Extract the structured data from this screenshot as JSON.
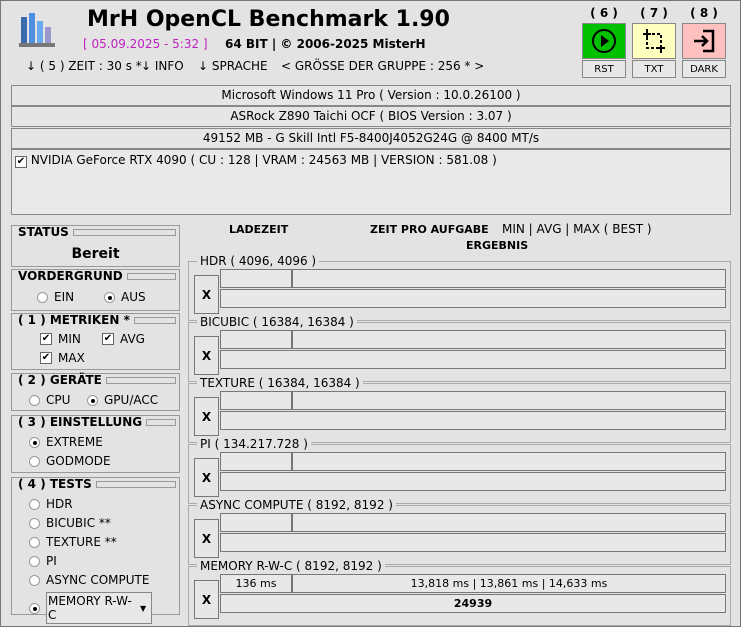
{
  "app": {
    "title": "MrH OpenCL Benchmark 1.90",
    "date": "[ 05.09.2025 - 5:32 ]",
    "bits": "64 BIT | ©  2006-2025 MisterH"
  },
  "menu": [
    {
      "label": "↓ ( 5 ) ZEIT : 30 s *"
    },
    {
      "label": "↓ INFO"
    },
    {
      "label": "↓ SPRACHE"
    },
    {
      "label": "< GRÖSSE DER GRUPPE : 256 * >"
    }
  ],
  "buttons": [
    {
      "num": "( 6 )",
      "label": "RST",
      "icon": "play-icon",
      "color": "#00c000"
    },
    {
      "num": "( 7 )",
      "label": "TXT",
      "icon": "crop-icon",
      "color": "#ffffc0"
    },
    {
      "num": "( 8 )",
      "label": "DARK",
      "icon": "exit-icon",
      "color": "#ffc0c0"
    }
  ],
  "info": {
    "os": "Microsoft Windows 11 Pro ( Version : 10.0.26100 )",
    "board": "ASRock Z890 Taichi OCF ( BIOS Version : 3.07 )",
    "ram": "49152 MB - G Skill Intl F5-8400J4052G24G     @ 8400 MT/s",
    "gpu": "NVIDIA GeForce RTX 4090 ( CU : 128 | VRAM : 24563 MB | VERSION : 581.08 )"
  },
  "status": {
    "label": "STATUS",
    "value": "Bereit"
  },
  "vordergrund": {
    "label": "VORDERGRUND",
    "ein": "EIN",
    "aus": "AUS",
    "selected": "AUS"
  },
  "metriken": {
    "label": "( 1 ) METRIKEN *",
    "min": "MIN",
    "avg": "AVG",
    "max": "MAX"
  },
  "geraete": {
    "label": "( 2 ) GERÄTE",
    "cpu": "CPU",
    "gpu": "GPU/ACC",
    "selected": "GPU/ACC"
  },
  "einstellung": {
    "label": "( 3 ) EINSTELLUNG",
    "extreme": "EXTREME",
    "godmode": "GODMODE",
    "selected": "EXTREME"
  },
  "tests": {
    "label": "( 4 ) TESTS",
    "items": [
      "HDR",
      "BICUBIC **",
      "TEXTURE **",
      "PI",
      "ASYNC COMPUTE",
      "MEMORY R-W-C"
    ],
    "selected": "MEMORY R-W-C"
  },
  "headers": {
    "ladezeit": "LADEZEIT",
    "zeit": "ZEIT PRO AUFGABE",
    "metrics": "MIN | AVG | MAX ( BEST )",
    "ergebnis": "ERGEBNIS"
  },
  "results": [
    {
      "name": "HDR ( 4096, 4096 )",
      "x": "X",
      "load": "",
      "times": "",
      "score": ""
    },
    {
      "name": "BICUBIC ( 16384, 16384 )",
      "x": "X",
      "load": "",
      "times": "",
      "score": ""
    },
    {
      "name": "TEXTURE ( 16384, 16384 )",
      "x": "X",
      "load": "",
      "times": "",
      "score": ""
    },
    {
      "name": "PI ( 134.217.728 )",
      "x": "X",
      "load": "",
      "times": "",
      "score": ""
    },
    {
      "name": "ASYNC COMPUTE ( 8192, 8192 )",
      "x": "X",
      "load": "",
      "times": "",
      "score": ""
    },
    {
      "name": "MEMORY R-W-C ( 8192, 8192 )",
      "x": "X",
      "load": "136 ms",
      "times": "13,818 ms | 13,861 ms | 14,633 ms",
      "score": "24939"
    }
  ]
}
